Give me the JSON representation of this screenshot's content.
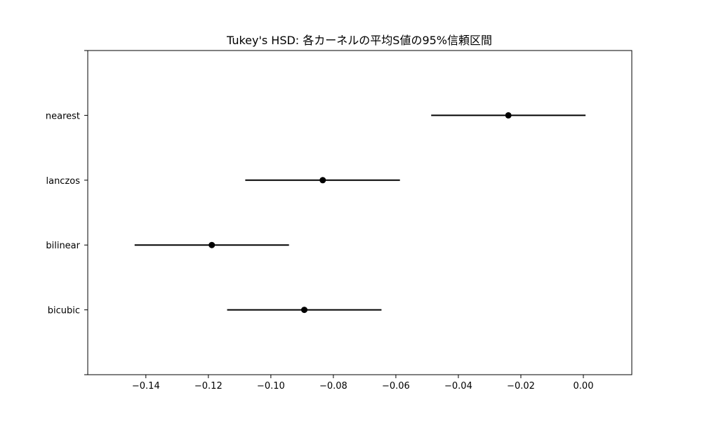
{
  "chart_data": {
    "type": "scatter",
    "title": "Tukey's HSD: 各カーネルの平均S値の95%信頼区間",
    "xlabel": "",
    "ylabel": "",
    "xlim": [
      -0.1586,
      0.0155
    ],
    "x_ticks": [
      -0.14,
      -0.12,
      -0.1,
      -0.08,
      -0.06,
      -0.04,
      -0.02,
      0.0
    ],
    "x_tick_labels": [
      "−0.14",
      "−0.12",
      "−0.10",
      "−0.08",
      "−0.06",
      "−0.04",
      "−0.02",
      "0.00"
    ],
    "categories": [
      "nearest",
      "lanczos",
      "bilinear",
      "bicubic"
    ],
    "points": [
      {
        "category": "nearest",
        "mean": -0.024,
        "lower": -0.0487,
        "upper": 0.0007
      },
      {
        "category": "lanczos",
        "mean": -0.0834,
        "lower": -0.1082,
        "upper": -0.0587
      },
      {
        "category": "bilinear",
        "mean": -0.1189,
        "lower": -0.1436,
        "upper": -0.0942
      },
      {
        "category": "bicubic",
        "mean": -0.0893,
        "lower": -0.114,
        "upper": -0.0646
      }
    ],
    "grid": false,
    "legend": "none",
    "color": "#000000"
  }
}
